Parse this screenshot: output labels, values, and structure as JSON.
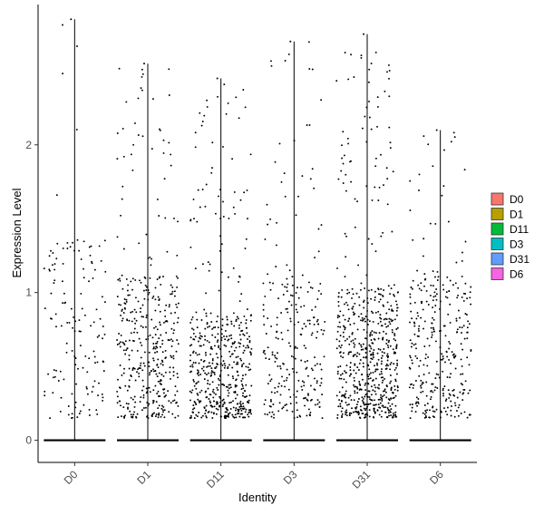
{
  "chart_data": {
    "type": "violin-jitter",
    "xlabel": "Identity",
    "ylabel": "Expression Level",
    "ylim": [
      -0.15,
      2.95
    ],
    "yticks": [
      0,
      1,
      2
    ],
    "categories": [
      "D0",
      "D1",
      "D11",
      "D3",
      "D31",
      "D6"
    ],
    "max_values": [
      2.85,
      2.55,
      2.45,
      2.7,
      2.75,
      2.1
    ],
    "approx_nonzero_points": [
      140,
      420,
      520,
      260,
      640,
      330
    ],
    "median_nonzero": [
      0.8,
      0.6,
      0.45,
      0.6,
      0.55,
      0.6
    ],
    "legend": {
      "placement": "right",
      "items": [
        {
          "label": "D0",
          "color": "#F8766D"
        },
        {
          "label": "D1",
          "color": "#B79F00"
        },
        {
          "label": "D11",
          "color": "#00BA38"
        },
        {
          "label": "D3",
          "color": "#00BFC4"
        },
        {
          "label": "D31",
          "color": "#619CFF"
        },
        {
          "label": "D6",
          "color": "#F564E3"
        }
      ]
    },
    "grid": false
  }
}
